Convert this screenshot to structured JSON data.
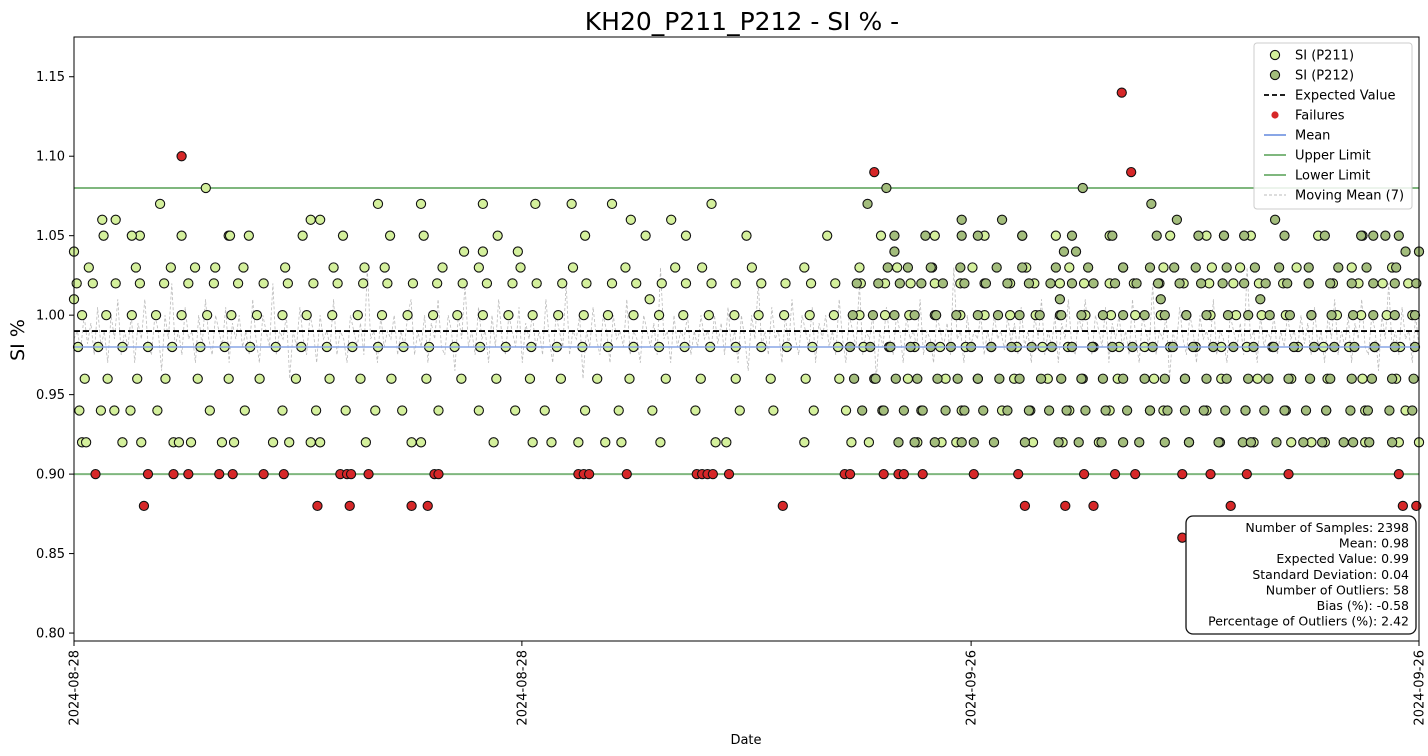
{
  "chart_data": {
    "type": "scatter",
    "title": "KH20_P211_P212 - SI % -",
    "xlabel": "Date",
    "ylabel": "SI %",
    "ylim": [
      0.795,
      1.175
    ],
    "yticks": [
      "0.80",
      "0.85",
      "0.90",
      "0.95",
      "1.00",
      "1.05",
      "1.10",
      "1.15"
    ],
    "ytick_values": [
      0.8,
      0.85,
      0.9,
      0.95,
      1.0,
      1.05,
      1.1,
      1.15
    ],
    "xticks": [
      "2024-08-28",
      "2024-08-28",
      "2024-09-26",
      "2024-09-26"
    ],
    "grid": false,
    "legend_position": "top-right",
    "expected_value": 0.99,
    "mean": 0.98,
    "upper_limit": 1.08,
    "lower_limit": 0.9,
    "levels": [
      0.92,
      0.94,
      0.96,
      0.98,
      1.0,
      1.02,
      1.03,
      1.05
    ],
    "level_rows": [
      {
        "y": 0.92,
        "x": [
          0.006,
          0.009,
          0.036,
          0.05,
          0.074,
          0.078,
          0.087,
          0.11,
          0.119,
          0.148,
          0.16,
          0.176,
          0.183,
          0.217,
          0.251,
          0.258,
          0.312,
          0.341,
          0.355,
          0.375,
          0.395,
          0.407,
          0.436,
          0.477,
          0.485,
          0.543,
          0.578,
          0.591,
          0.627,
          0.645,
          0.656,
          0.713,
          0.735,
          0.762,
          0.829,
          0.852,
          0.877,
          0.905,
          0.92,
          0.93,
          0.96,
          0.985,
          1.0
        ],
        "y2": [
          0.613,
          0.625,
          0.64,
          0.66,
          0.669,
          0.684,
          0.707,
          0.732,
          0.747,
          0.764,
          0.78,
          0.792,
          0.811,
          0.829,
          0.851,
          0.869,
          0.875,
          0.894,
          0.914,
          0.928,
          0.944,
          0.951,
          0.963,
          0.98
        ]
      },
      {
        "y": 0.94,
        "x": [
          0.004,
          0.02,
          0.03,
          0.042,
          0.062,
          0.101,
          0.127,
          0.155,
          0.18,
          0.202,
          0.224,
          0.244,
          0.271,
          0.301,
          0.328,
          0.35,
          0.38,
          0.405,
          0.43,
          0.462,
          0.495,
          0.52,
          0.55,
          0.574,
          0.601,
          0.63,
          0.66,
          0.69,
          0.711,
          0.74,
          0.77,
          0.8,
          0.81,
          0.842,
          0.871,
          0.901,
          0.931,
          0.96,
          0.99
        ],
        "y2": [
          0.586,
          0.602,
          0.617,
          0.631,
          0.648,
          0.662,
          0.676,
          0.694,
          0.71,
          0.725,
          0.738,
          0.752,
          0.767,
          0.783,
          0.8,
          0.813,
          0.826,
          0.84,
          0.856,
          0.871,
          0.885,
          0.9,
          0.916,
          0.931,
          0.949,
          0.962,
          0.978,
          0.995
        ]
      },
      {
        "y": 0.96,
        "x": [
          0.008,
          0.025,
          0.047,
          0.068,
          0.092,
          0.115,
          0.138,
          0.165,
          0.19,
          0.213,
          0.236,
          0.262,
          0.288,
          0.314,
          0.339,
          0.362,
          0.389,
          0.413,
          0.44,
          0.466,
          0.492,
          0.518,
          0.544,
          0.569,
          0.595,
          0.62,
          0.648,
          0.672,
          0.699,
          0.724,
          0.75,
          0.776,
          0.803,
          0.826,
          0.853,
          0.88,
          0.905,
          0.932,
          0.958,
          0.983
        ],
        "y2": [
          0.58,
          0.596,
          0.611,
          0.627,
          0.642,
          0.657,
          0.672,
          0.688,
          0.703,
          0.719,
          0.734,
          0.749,
          0.765,
          0.78,
          0.796,
          0.811,
          0.826,
          0.842,
          0.857,
          0.873,
          0.888,
          0.903,
          0.919,
          0.934,
          0.95,
          0.965,
          0.98,
          0.996
        ]
      },
      {
        "y": 0.98,
        "x": [
          0.003,
          0.018,
          0.036,
          0.055,
          0.073,
          0.094,
          0.112,
          0.131,
          0.15,
          0.169,
          0.188,
          0.207,
          0.226,
          0.245,
          0.264,
          0.283,
          0.302,
          0.321,
          0.34,
          0.359,
          0.378,
          0.397,
          0.416,
          0.435,
          0.454,
          0.473,
          0.492,
          0.511,
          0.53,
          0.549,
          0.568,
          0.587,
          0.606,
          0.625,
          0.644,
          0.663,
          0.682,
          0.701,
          0.72,
          0.739,
          0.758,
          0.777,
          0.796,
          0.815,
          0.834,
          0.853,
          0.872,
          0.891,
          0.91,
          0.929,
          0.948,
          0.967,
          0.986
        ],
        "y2": [
          0.577,
          0.592,
          0.607,
          0.622,
          0.637,
          0.652,
          0.667,
          0.682,
          0.697,
          0.712,
          0.727,
          0.742,
          0.757,
          0.772,
          0.787,
          0.802,
          0.817,
          0.832,
          0.847,
          0.862,
          0.877,
          0.892,
          0.907,
          0.922,
          0.937,
          0.952,
          0.967,
          0.982,
          0.997
        ]
      },
      {
        "y": 1.0,
        "x": [
          0.006,
          0.024,
          0.043,
          0.061,
          0.08,
          0.099,
          0.117,
          0.136,
          0.155,
          0.173,
          0.192,
          0.211,
          0.229,
          0.248,
          0.267,
          0.285,
          0.304,
          0.323,
          0.341,
          0.36,
          0.379,
          0.397,
          0.416,
          0.435,
          0.453,
          0.472,
          0.491,
          0.509,
          0.528,
          0.547,
          0.565,
          0.584,
          0.603,
          0.621,
          0.64,
          0.659,
          0.677,
          0.696,
          0.715,
          0.733,
          0.752,
          0.771,
          0.789,
          0.808,
          0.827,
          0.845,
          0.864,
          0.883,
          0.901,
          0.92,
          0.939,
          0.957,
          0.976,
          0.995
        ],
        "y2": [
          0.579,
          0.594,
          0.61,
          0.625,
          0.641,
          0.656,
          0.672,
          0.687,
          0.703,
          0.718,
          0.734,
          0.749,
          0.765,
          0.78,
          0.796,
          0.811,
          0.827,
          0.842,
          0.858,
          0.873,
          0.889,
          0.904,
          0.92,
          0.935,
          0.951,
          0.966,
          0.982,
          0.997
        ]
      },
      {
        "y": 1.02,
        "x": [
          0.002,
          0.014,
          0.031,
          0.049,
          0.067,
          0.085,
          0.104,
          0.122,
          0.141,
          0.159,
          0.178,
          0.196,
          0.215,
          0.233,
          0.252,
          0.27,
          0.289,
          0.307,
          0.326,
          0.344,
          0.363,
          0.381,
          0.4,
          0.418,
          0.437,
          0.455,
          0.474,
          0.492,
          0.511,
          0.529,
          0.548,
          0.566,
          0.585,
          0.603,
          0.622,
          0.64,
          0.659,
          0.677,
          0.696,
          0.714,
          0.733,
          0.751,
          0.77,
          0.788,
          0.807,
          0.825,
          0.844,
          0.862,
          0.881,
          0.899,
          0.918,
          0.936,
          0.955,
          0.973,
          0.992
        ],
        "y2": [
          0.582,
          0.598,
          0.614,
          0.63,
          0.646,
          0.662,
          0.678,
          0.694,
          0.71,
          0.726,
          0.742,
          0.758,
          0.774,
          0.79,
          0.806,
          0.822,
          0.838,
          0.854,
          0.87,
          0.886,
          0.902,
          0.918,
          0.934,
          0.95,
          0.966,
          0.982,
          0.998
        ]
      },
      {
        "y": 1.03,
        "x": [
          0.011,
          0.046,
          0.072,
          0.09,
          0.105,
          0.126,
          0.157,
          0.193,
          0.216,
          0.231,
          0.274,
          0.301,
          0.332,
          0.371,
          0.41,
          0.447,
          0.467,
          0.504,
          0.543,
          0.584,
          0.612,
          0.638,
          0.668,
          0.708,
          0.74,
          0.78,
          0.81,
          0.846,
          0.867,
          0.909,
          0.95,
          0.98
        ],
        "y2": [
          0.605,
          0.62,
          0.637,
          0.659,
          0.686,
          0.705,
          0.73,
          0.754,
          0.78,
          0.8,
          0.818,
          0.834,
          0.857,
          0.878,
          0.896,
          0.918,
          0.94,
          0.961,
          0.983
        ]
      },
      {
        "y": 1.05,
        "x": [
          0.022,
          0.049,
          0.08,
          0.115,
          0.13,
          0.17,
          0.2,
          0.235,
          0.26,
          0.315,
          0.38,
          0.425,
          0.455,
          0.5,
          0.56,
          0.6,
          0.64,
          0.677,
          0.705,
          0.73,
          0.77,
          0.815,
          0.842,
          0.875,
          0.925,
          0.958
        ],
        "y2": [
          0.61,
          0.633,
          0.66,
          0.672,
          0.705,
          0.742,
          0.772,
          0.805,
          0.836,
          0.855,
          0.87,
          0.9,
          0.93,
          0.957,
          0.975
        ]
      }
    ],
    "extra_points": [
      {
        "x": 0.0,
        "y": 1.04
      },
      {
        "x": 0.0,
        "y": 1.01
      },
      {
        "x": 0.021,
        "y": 1.06
      },
      {
        "x": 0.031,
        "y": 1.06
      },
      {
        "x": 0.043,
        "y": 1.05
      },
      {
        "x": 0.064,
        "y": 1.07
      },
      {
        "x": 0.098,
        "y": 1.08
      },
      {
        "x": 0.116,
        "y": 1.05
      },
      {
        "x": 0.176,
        "y": 1.06
      },
      {
        "x": 0.183,
        "y": 1.06
      },
      {
        "x": 0.226,
        "y": 1.07
      },
      {
        "x": 0.258,
        "y": 1.07
      },
      {
        "x": 0.304,
        "y": 1.07
      },
      {
        "x": 0.343,
        "y": 1.07
      },
      {
        "x": 0.37,
        "y": 1.07
      },
      {
        "x": 0.4,
        "y": 1.07
      },
      {
        "x": 0.474,
        "y": 1.07
      },
      {
        "x": 0.414,
        "y": 1.06
      },
      {
        "x": 0.444,
        "y": 1.06
      },
      {
        "x": 0.304,
        "y": 1.04
      },
      {
        "x": 0.29,
        "y": 1.04
      },
      {
        "x": 0.33,
        "y": 1.04
      },
      {
        "x": 0.61,
        "y": 1.04
      },
      {
        "x": 0.604,
        "y": 1.08
      },
      {
        "x": 0.75,
        "y": 1.08
      },
      {
        "x": 0.59,
        "y": 1.07
      },
      {
        "x": 0.801,
        "y": 1.07
      },
      {
        "x": 0.66,
        "y": 1.06
      },
      {
        "x": 0.69,
        "y": 1.06
      },
      {
        "x": 0.82,
        "y": 1.06
      },
      {
        "x": 0.893,
        "y": 1.06
      },
      {
        "x": 0.733,
        "y": 1.01
      },
      {
        "x": 0.882,
        "y": 1.01
      },
      {
        "x": 0.428,
        "y": 1.01
      },
      {
        "x": 0.808,
        "y": 1.01
      },
      {
        "x": 0.966,
        "y": 1.05
      },
      {
        "x": 0.985,
        "y": 1.05
      },
      {
        "x": 1.0,
        "y": 1.04
      },
      {
        "x": 0.99,
        "y": 1.04
      },
      {
        "x": 0.855,
        "y": 1.05
      },
      {
        "x": 0.745,
        "y": 1.04
      },
      {
        "x": 0.736,
        "y": 1.04
      }
    ],
    "failures": [
      {
        "x": 0.016,
        "y": 0.9
      },
      {
        "x": 0.052,
        "y": 0.88
      },
      {
        "x": 0.055,
        "y": 0.9
      },
      {
        "x": 0.074,
        "y": 0.9
      },
      {
        "x": 0.085,
        "y": 0.9
      },
      {
        "x": 0.08,
        "y": 1.1
      },
      {
        "x": 0.108,
        "y": 0.9
      },
      {
        "x": 0.118,
        "y": 0.9
      },
      {
        "x": 0.141,
        "y": 0.9
      },
      {
        "x": 0.156,
        "y": 0.9
      },
      {
        "x": 0.181,
        "y": 0.88
      },
      {
        "x": 0.198,
        "y": 0.9
      },
      {
        "x": 0.203,
        "y": 0.9
      },
      {
        "x": 0.205,
        "y": 0.88
      },
      {
        "x": 0.206,
        "y": 0.9
      },
      {
        "x": 0.219,
        "y": 0.9
      },
      {
        "x": 0.251,
        "y": 0.88
      },
      {
        "x": 0.263,
        "y": 0.88
      },
      {
        "x": 0.268,
        "y": 0.9
      },
      {
        "x": 0.271,
        "y": 0.9
      },
      {
        "x": 0.375,
        "y": 0.9
      },
      {
        "x": 0.379,
        "y": 0.9
      },
      {
        "x": 0.383,
        "y": 0.9
      },
      {
        "x": 0.411,
        "y": 0.9
      },
      {
        "x": 0.463,
        "y": 0.9
      },
      {
        "x": 0.467,
        "y": 0.9
      },
      {
        "x": 0.471,
        "y": 0.9
      },
      {
        "x": 0.475,
        "y": 0.9
      },
      {
        "x": 0.487,
        "y": 0.9
      },
      {
        "x": 0.527,
        "y": 0.88
      },
      {
        "x": 0.573,
        "y": 0.9
      },
      {
        "x": 0.577,
        "y": 0.9
      },
      {
        "x": 0.595,
        "y": 1.09
      },
      {
        "x": 0.602,
        "y": 0.9
      },
      {
        "x": 0.613,
        "y": 0.9
      },
      {
        "x": 0.617,
        "y": 0.9
      },
      {
        "x": 0.631,
        "y": 0.9
      },
      {
        "x": 0.669,
        "y": 0.9
      },
      {
        "x": 0.702,
        "y": 0.9
      },
      {
        "x": 0.707,
        "y": 0.88
      },
      {
        "x": 0.737,
        "y": 0.88
      },
      {
        "x": 0.751,
        "y": 0.9
      },
      {
        "x": 0.758,
        "y": 0.88
      },
      {
        "x": 0.774,
        "y": 0.9
      },
      {
        "x": 0.779,
        "y": 1.14
      },
      {
        "x": 0.786,
        "y": 1.09
      },
      {
        "x": 0.789,
        "y": 0.9
      },
      {
        "x": 0.824,
        "y": 0.86
      },
      {
        "x": 0.824,
        "y": 0.9
      },
      {
        "x": 0.845,
        "y": 0.9
      },
      {
        "x": 0.86,
        "y": 0.88
      },
      {
        "x": 0.872,
        "y": 0.9
      },
      {
        "x": 0.903,
        "y": 0.9
      },
      {
        "x": 0.985,
        "y": 0.9
      },
      {
        "x": 0.988,
        "y": 0.88
      },
      {
        "x": 0.998,
        "y": 0.88
      }
    ],
    "moving_mean": [
      0.985,
      0.99,
      0.978,
      1.0,
      0.982,
      0.995,
      0.975,
      1.005,
      0.98,
      0.99,
      0.97,
      1.0,
      0.985,
      1.01,
      0.975,
      0.99,
      0.98,
      1.0,
      0.97,
      0.995,
      0.985,
      1.01,
      0.98,
      0.975,
      1.0,
      0.99,
      0.965,
      1.0,
      0.985,
      1.02,
      0.98,
      0.99,
      0.975,
      1.005,
      0.985,
      0.99,
      0.97,
      1.0,
      0.98,
      1.01,
      0.985,
      0.975,
      1.0,
      0.99,
      0.98,
      1.005,
      0.97,
      0.995,
      0.985,
      1.0,
      0.98,
      0.99,
      0.975,
      1.01,
      0.985,
      0.97,
      1.0,
      0.99,
      0.98,
      1.02,
      0.975,
      0.99,
      0.985,
      1.0,
      0.96,
      0.99,
      0.98,
      1.005,
      0.985,
      0.975,
      1.0,
      0.99,
      0.97,
      1.0,
      0.985,
      0.99,
      0.98,
      1.01,
      0.975,
      0.99,
      0.985,
      0.97,
      1.0,
      0.99,
      0.98,
      0.995,
      0.975,
      1.03,
      0.985,
      0.99,
      0.97,
      1.0,
      0.98,
      0.99,
      0.985,
      1.0,
      0.975,
      0.99,
      0.98,
      1.0
    ],
    "series": [
      {
        "name": "SI (P211)",
        "color": "#d4f09c"
      },
      {
        "name": "SI (P212)",
        "color": "#a3bd7c"
      },
      {
        "name": "Expected Value",
        "color": "#000000"
      },
      {
        "name": "Failures",
        "color": "#d62728"
      },
      {
        "name": "Mean",
        "color": "#89a6e6"
      },
      {
        "name": "Upper Limit",
        "color": "#7fb77e"
      },
      {
        "name": "Lower Limit",
        "color": "#7fb77e"
      },
      {
        "name": "Moving Mean (7)",
        "color": "#bbbbbb"
      }
    ],
    "stats": [
      "Number of Samples: 2398",
      "Mean: 0.98",
      "Expected Value: 0.99",
      "Standard Deviation: 0.04",
      "Number of Outliers: 58",
      "Bias (%): -0.58",
      "Percentage of Outliers (%): 2.42"
    ]
  }
}
